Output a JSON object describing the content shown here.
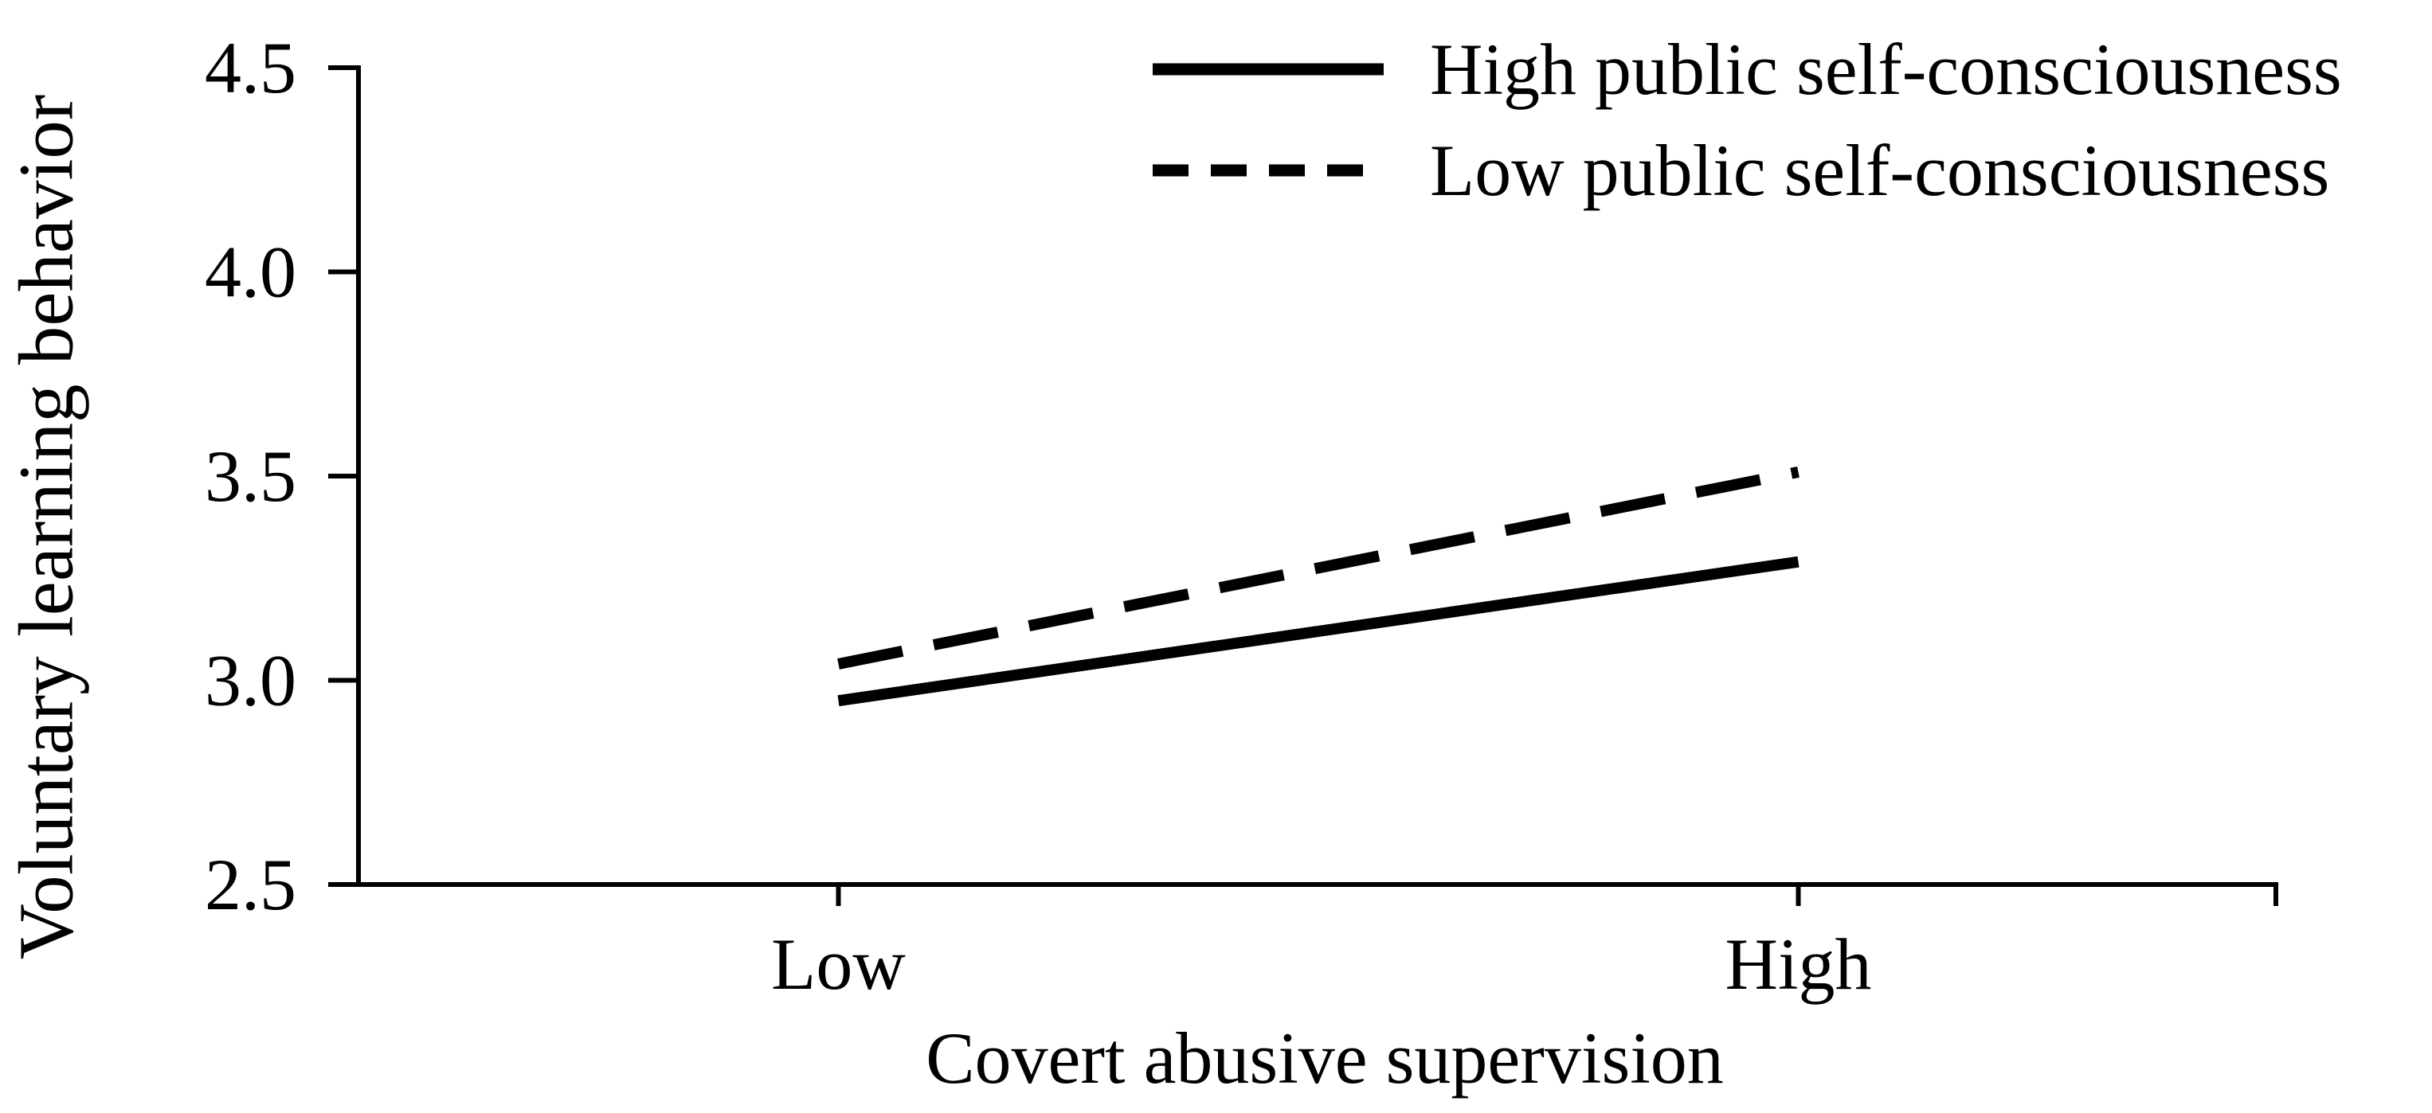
{
  "figure": {
    "background_color": "#ffffff",
    "ink_color": "#000000"
  },
  "chart_data": {
    "type": "line",
    "title": "",
    "xlabel": "Covert abusive supervision",
    "ylabel": "Voluntary learning behavior",
    "categories": [
      "Low",
      "High"
    ],
    "series": [
      {
        "name": "High public self-consciousness",
        "line_style": "solid",
        "values": [
          2.95,
          3.29
        ]
      },
      {
        "name": "Low public self-consciousness",
        "line_style": "dashed",
        "values": [
          3.04,
          3.51
        ]
      }
    ],
    "ylim": [
      2.5,
      4.5
    ],
    "ytick_values": [
      2.5,
      3.0,
      3.5,
      4.0,
      4.5
    ],
    "ytick_labels": [
      "2.5",
      "3.0",
      "3.5",
      "4.0",
      "4.5"
    ],
    "grid": false,
    "legend_position": "top-right",
    "legend_entries": [
      {
        "label": "High public self-consciousness",
        "line_style": "solid"
      },
      {
        "label": "Low public self-consciousness",
        "line_style": "dashed"
      }
    ]
  }
}
